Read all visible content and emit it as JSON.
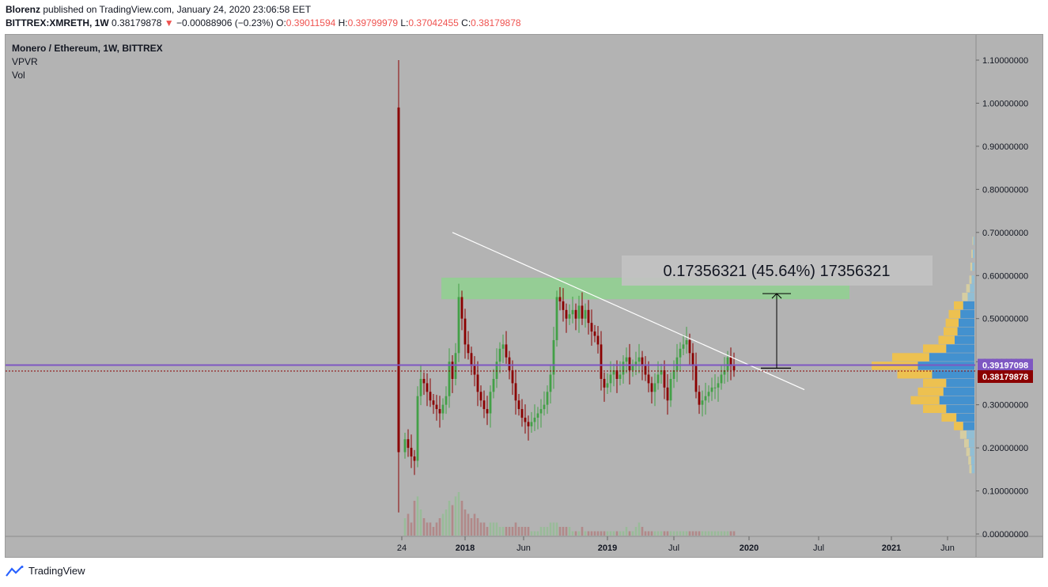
{
  "header": {
    "author": "Blorenz",
    "published": "published on TradingView.com, January 24, 2020 23:06:58 EET",
    "symbol": "BITTREX:XMRETH, 1W",
    "last": "0.38179878",
    "arrow": "▼",
    "change": "−0.00088906 (−0.23%)",
    "o_label": "O:",
    "o": "0.39011594",
    "h_label": "H:",
    "h": "0.39799979",
    "l_label": "L:",
    "l": "0.37042455",
    "c_label": "C:",
    "c": "0.38179878"
  },
  "legend": {
    "title": "Monero / Ethereum, 1W, BITTREX",
    "ind1": "VPVR",
    "ind2": "Vol"
  },
  "measure_label": "0.17356321 (45.64%) 17356321",
  "price_tags": {
    "poc": "0.39197098",
    "last": "0.38179878"
  },
  "footer": {
    "brand": "TradingView"
  },
  "colors": {
    "up": "#43a047",
    "down": "#8b0000",
    "background": "#b3b3b3",
    "poc_line": "#7e57c2",
    "zone": "#8fd18f",
    "vp_blue": "#3d8fd1",
    "vp_gold": "#f0c24b"
  },
  "chart_data": {
    "type": "candlestick",
    "title": "Monero / Ethereum, 1W, BITTREX",
    "y_axis": {
      "min": 0.0,
      "max": 1.1,
      "ticks": [
        "1.10000000",
        "1.00000000",
        "0.90000000",
        "0.80000000",
        "0.70000000",
        "0.60000000",
        "0.50000000",
        "0.40000000",
        "0.30000000",
        "0.20000000",
        "0.10000000",
        "0.00000000"
      ]
    },
    "x_axis": {
      "ticks": [
        "24",
        "2018",
        "Jun",
        "2019",
        "Jul",
        "2020",
        "Jul",
        "2021",
        "Jun"
      ]
    },
    "close_series": [
      0.22,
      0.2,
      0.18,
      0.17,
      0.32,
      0.36,
      0.35,
      0.33,
      0.31,
      0.3,
      0.29,
      0.28,
      0.3,
      0.32,
      0.4,
      0.36,
      0.42,
      0.55,
      0.5,
      0.44,
      0.42,
      0.39,
      0.37,
      0.33,
      0.31,
      0.29,
      0.28,
      0.33,
      0.36,
      0.4,
      0.43,
      0.44,
      0.41,
      0.38,
      0.35,
      0.31,
      0.29,
      0.27,
      0.26,
      0.25,
      0.26,
      0.27,
      0.28,
      0.29,
      0.3,
      0.33,
      0.37,
      0.45,
      0.55,
      0.54,
      0.52,
      0.5,
      0.51,
      0.52,
      0.5,
      0.53,
      0.5,
      0.52,
      0.49,
      0.47,
      0.46,
      0.44,
      0.36,
      0.34,
      0.35,
      0.37,
      0.38,
      0.36,
      0.37,
      0.4,
      0.41,
      0.38,
      0.39,
      0.4,
      0.41,
      0.39,
      0.37,
      0.35,
      0.33,
      0.35,
      0.37,
      0.38,
      0.34,
      0.31,
      0.36,
      0.38,
      0.41,
      0.43,
      0.44,
      0.45,
      0.42,
      0.39,
      0.33,
      0.3,
      0.31,
      0.32,
      0.33,
      0.34,
      0.34,
      0.35,
      0.37,
      0.38,
      0.41,
      0.39,
      0.38
    ],
    "volume_series": [
      0.04,
      0.05,
      0.03,
      0.08,
      0.09,
      0.06,
      0.04,
      0.03,
      0.03,
      0.02,
      0.03,
      0.04,
      0.05,
      0.06,
      0.08,
      0.07,
      0.09,
      0.1,
      0.08,
      0.06,
      0.05,
      0.04,
      0.05,
      0.04,
      0.03,
      0.03,
      0.02,
      0.03,
      0.03,
      0.03,
      0.02,
      0.02,
      0.02,
      0.02,
      0.02,
      0.03,
      0.02,
      0.02,
      0.02,
      0.02,
      0.01,
      0.01,
      0.01,
      0.02,
      0.02,
      0.02,
      0.03,
      0.03,
      0.03,
      0.02,
      0.02,
      0.02,
      0.02,
      0.01,
      0.01,
      0.01,
      0.02,
      0.01,
      0.01,
      0.01,
      0.01,
      0.01,
      0.01,
      0.01,
      0.01,
      0.01,
      0.01,
      0.01,
      0.01,
      0.01,
      0.02,
      0.01,
      0.01,
      0.02,
      0.03,
      0.02,
      0.01,
      0.01,
      0.01,
      0.01,
      0.01,
      0.01,
      0.01,
      0.01,
      0.01,
      0.01,
      0.01,
      0.01,
      0.01,
      0.01,
      0.01,
      0.01,
      0.01,
      0.01,
      0.01,
      0.01,
      0.01,
      0.01,
      0.01,
      0.01,
      0.01,
      0.01,
      0.01,
      0.01,
      0.01
    ],
    "spike": {
      "high": 1.1,
      "low": 0.05
    },
    "resistance_zone": {
      "low": 0.545,
      "high": 0.595
    },
    "trendline": {
      "start_value": 0.7,
      "end_value": 0.335
    },
    "measure": {
      "from": 0.385,
      "to": 0.558
    },
    "volume_profile": [
      {
        "p": 0.15,
        "v": 0.05,
        "poc": false
      },
      {
        "p": 0.17,
        "v": 0.06,
        "poc": false
      },
      {
        "p": 0.19,
        "v": 0.08,
        "poc": false
      },
      {
        "p": 0.21,
        "v": 0.1,
        "poc": false
      },
      {
        "p": 0.23,
        "v": 0.14,
        "poc": false
      },
      {
        "p": 0.25,
        "v": 0.2,
        "poc": false
      },
      {
        "p": 0.27,
        "v": 0.32,
        "poc": false
      },
      {
        "p": 0.29,
        "v": 0.5,
        "poc": false
      },
      {
        "p": 0.31,
        "v": 0.62,
        "poc": false
      },
      {
        "p": 0.33,
        "v": 0.55,
        "poc": false
      },
      {
        "p": 0.35,
        "v": 0.5,
        "poc": false
      },
      {
        "p": 0.37,
        "v": 0.75,
        "poc": false
      },
      {
        "p": 0.39,
        "v": 1.0,
        "poc": true
      },
      {
        "p": 0.41,
        "v": 0.8,
        "poc": false
      },
      {
        "p": 0.43,
        "v": 0.5,
        "poc": false
      },
      {
        "p": 0.45,
        "v": 0.35,
        "poc": false
      },
      {
        "p": 0.47,
        "v": 0.3,
        "poc": false
      },
      {
        "p": 0.49,
        "v": 0.28,
        "poc": false
      },
      {
        "p": 0.51,
        "v": 0.25,
        "poc": false
      },
      {
        "p": 0.53,
        "v": 0.2,
        "poc": false
      },
      {
        "p": 0.55,
        "v": 0.12,
        "poc": false
      },
      {
        "p": 0.57,
        "v": 0.08,
        "poc": false
      },
      {
        "p": 0.59,
        "v": 0.05,
        "poc": false
      },
      {
        "p": 0.62,
        "v": 0.04,
        "poc": false
      },
      {
        "p": 0.65,
        "v": 0.03,
        "poc": false
      },
      {
        "p": 0.68,
        "v": 0.02,
        "poc": false
      }
    ],
    "grid": false,
    "legend_position": "top-left"
  }
}
